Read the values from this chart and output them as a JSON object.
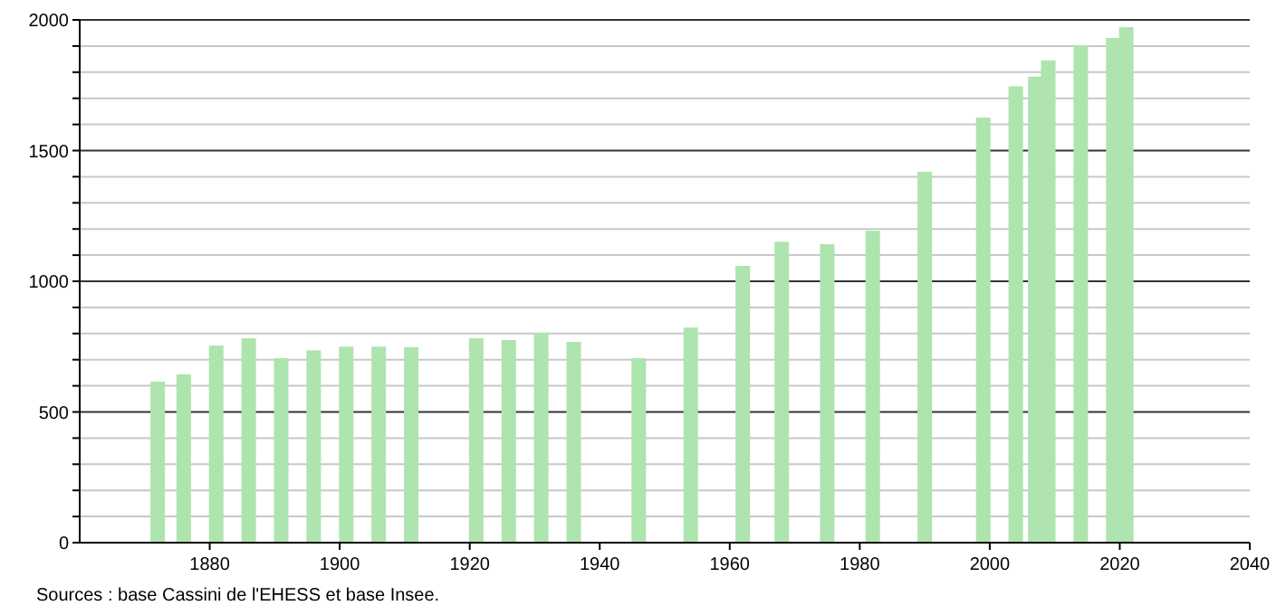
{
  "chart_data": {
    "type": "bar",
    "x": [
      1872,
      1876,
      1881,
      1886,
      1891,
      1896,
      1901,
      1906,
      1911,
      1921,
      1926,
      1931,
      1936,
      1946,
      1954,
      1962,
      1968,
      1975,
      1982,
      1990,
      1999,
      2004,
      2007,
      2009,
      2014,
      2019,
      2021
    ],
    "values": [
      616,
      644,
      754,
      782,
      706,
      736,
      750,
      750,
      748,
      782,
      775,
      803,
      768,
      706,
      823,
      1059,
      1151,
      1142,
      1193,
      1419,
      1626,
      1746,
      1783,
      1845,
      1903,
      1931,
      1972
    ],
    "color": "#aee4ae",
    "xlim": [
      1860,
      2040
    ],
    "xticks": [
      1880,
      1900,
      1920,
      1940,
      1960,
      1980,
      2000,
      2020,
      2040
    ],
    "ylim": [
      0,
      2000
    ],
    "yticks": [
      0,
      {
        "value": 100,
        "label": null
      },
      {
        "value": 200,
        "label": null
      },
      {
        "value": 300,
        "label": null
      },
      {
        "value": 400,
        "label": null
      },
      500,
      {
        "value": 600,
        "label": null
      },
      {
        "value": 700,
        "label": null
      },
      {
        "value": 800,
        "label": null
      },
      {
        "value": 900,
        "label": null
      },
      1000,
      {
        "value": 1100,
        "label": null
      },
      {
        "value": 1200,
        "label": null
      },
      {
        "value": 1300,
        "label": null
      },
      {
        "value": 1400,
        "label": null
      },
      1500,
      {
        "value": 1600,
        "label": null
      },
      {
        "value": 1700,
        "label": null
      },
      {
        "value": 1800,
        "label": null
      },
      {
        "value": 1900,
        "label": null
      },
      2000
    ],
    "grid": "y",
    "annotations": [
      "Sources : base Cassini de l'EHESS et base Insee."
    ]
  }
}
